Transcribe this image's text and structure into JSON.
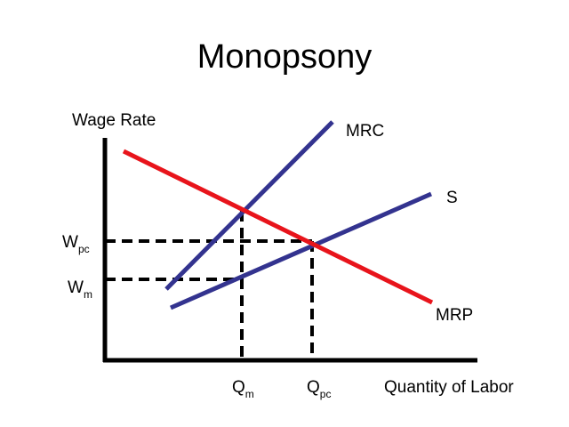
{
  "title": "Monopsony",
  "axes": {
    "y_label": "Wage Rate",
    "x_label": "Quantity of Labor"
  },
  "curves": {
    "mrc": {
      "label": "MRC",
      "color": "#33338f"
    },
    "s": {
      "label": "S",
      "color": "#33338f"
    },
    "mrp": {
      "label": "MRP",
      "color": "#e8141b"
    }
  },
  "markers": {
    "wpc": {
      "main": "W",
      "sub": "pc"
    },
    "wm": {
      "main": "W",
      "sub": "m"
    },
    "qm": {
      "main": "Q",
      "sub": "m"
    },
    "qpc": {
      "main": "Q",
      "sub": "pc"
    }
  },
  "colors": {
    "axis": "#000000",
    "guide": "#000000"
  }
}
